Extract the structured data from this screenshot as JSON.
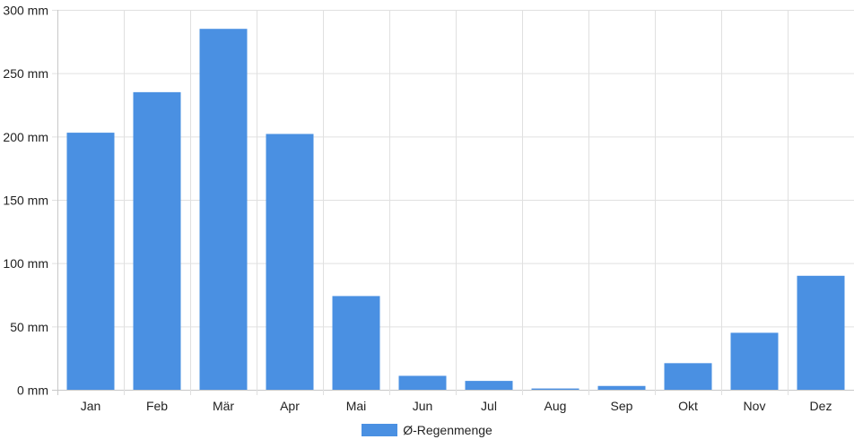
{
  "chart_data": {
    "type": "bar",
    "categories": [
      "Jan",
      "Feb",
      "Mär",
      "Apr",
      "Mai",
      "Jun",
      "Jul",
      "Aug",
      "Sep",
      "Okt",
      "Nov",
      "Dez"
    ],
    "series": [
      {
        "name": "Ø-Regenmenge",
        "values": [
          203,
          235,
          285,
          202,
          74,
          11,
          7,
          1,
          3,
          21,
          45,
          90
        ]
      }
    ],
    "y_ticks": [
      "0 mm",
      "50 mm",
      "100 mm",
      "150 mm",
      "200 mm",
      "250 mm",
      "300 mm"
    ],
    "ylim": [
      0,
      300
    ],
    "y_unit": "mm",
    "grid": true,
    "legend_position": "bottom",
    "colors": {
      "bar": "#4a90e2",
      "grid": "#e0e0e0",
      "axis": "#c8c8c8",
      "text": "#222222"
    }
  }
}
